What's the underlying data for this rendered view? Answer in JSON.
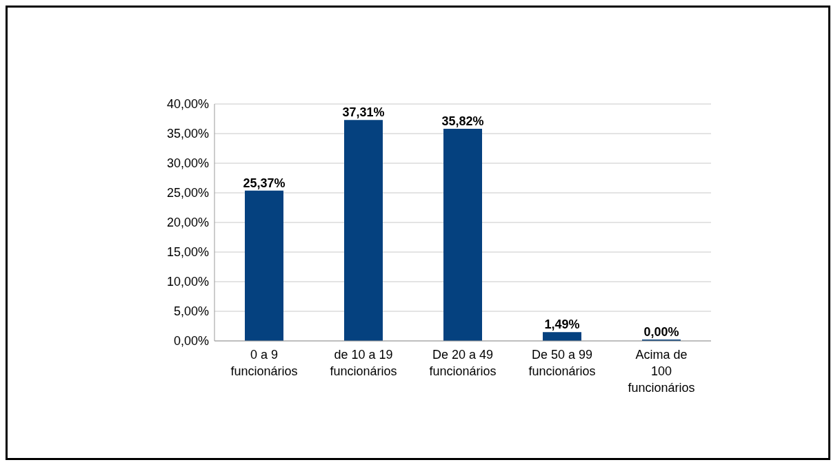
{
  "chart_data": {
    "type": "bar",
    "categories": [
      "0 a 9 funcionários",
      "de 10 a 19 funcionários",
      "De 20 a 49 funcionários",
      "De 50 a 99 funcionários",
      "Acima de 100 funcionários"
    ],
    "values": [
      25.37,
      37.31,
      35.82,
      1.49,
      0
    ],
    "value_labels": [
      "25,37%",
      "37,31%",
      "35,82%",
      "1,49%",
      "0,00%"
    ],
    "color": "#05417f",
    "ylim": [
      0,
      40
    ],
    "yticks": [
      {
        "value": 0,
        "label": "0,00%"
      },
      {
        "value": 5,
        "label": "5,00%"
      },
      {
        "value": 10,
        "label": "10,00%"
      },
      {
        "value": 15,
        "label": "15,00%"
      },
      {
        "value": 20,
        "label": "20,00%"
      },
      {
        "value": 25,
        "label": "25,00%"
      },
      {
        "value": 30,
        "label": "30,00%"
      },
      {
        "value": 35,
        "label": "35,00%"
      },
      {
        "value": 40,
        "label": "40,00%"
      }
    ],
    "grid": "y"
  }
}
